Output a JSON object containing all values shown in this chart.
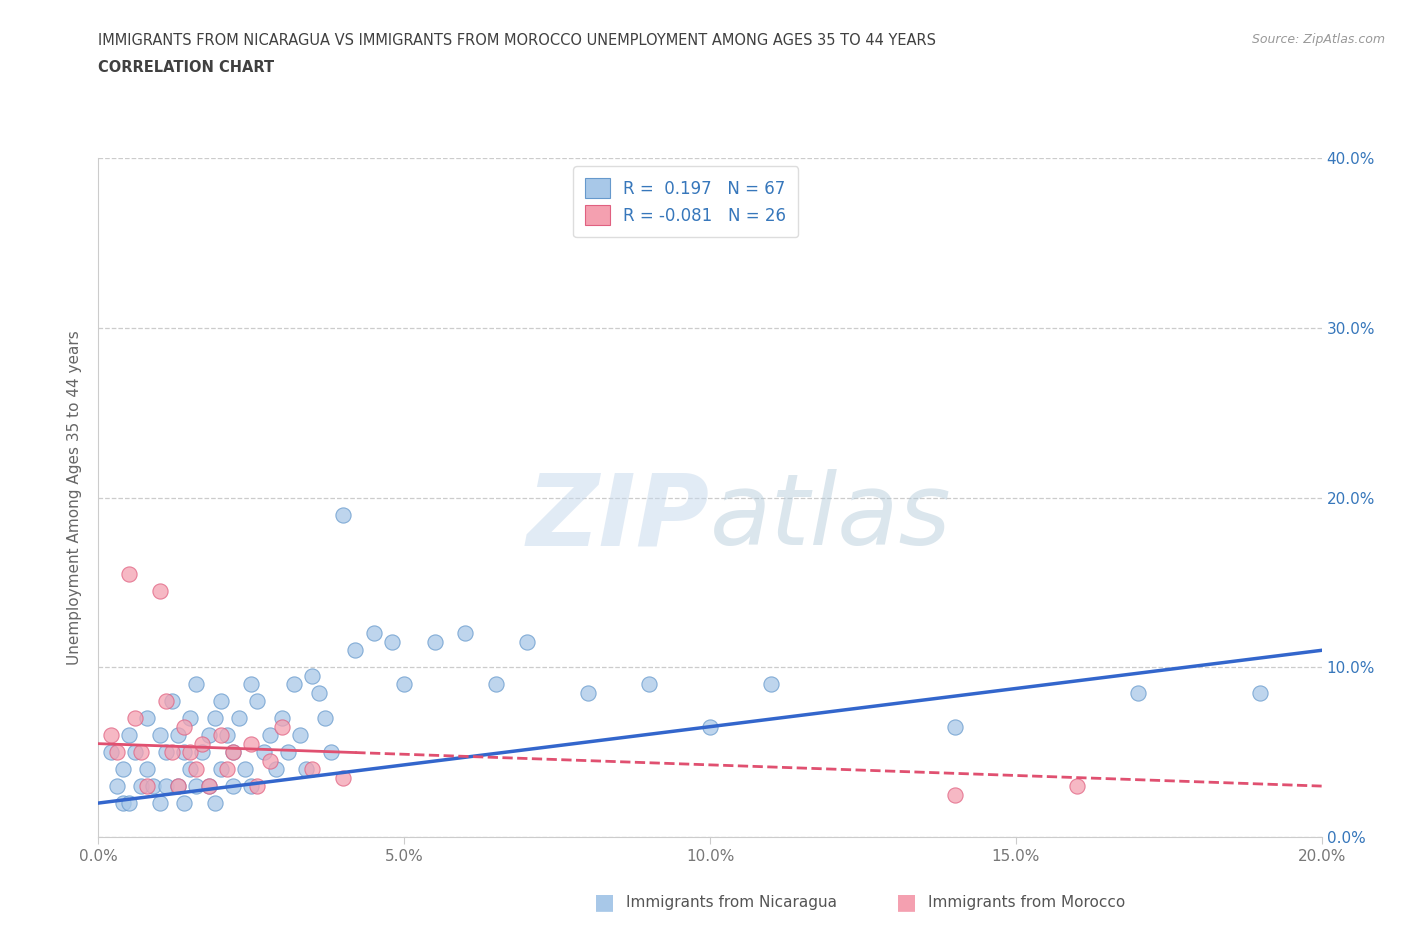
{
  "title_line1": "IMMIGRANTS FROM NICARAGUA VS IMMIGRANTS FROM MOROCCO UNEMPLOYMENT AMONG AGES 35 TO 44 YEARS",
  "title_line2": "CORRELATION CHART",
  "source": "Source: ZipAtlas.com",
  "ylabel": "Unemployment Among Ages 35 to 44 years",
  "xlim": [
    0.0,
    0.2
  ],
  "ylim": [
    0.0,
    0.4
  ],
  "xticks": [
    0.0,
    0.05,
    0.1,
    0.15,
    0.2
  ],
  "yticks": [
    0.0,
    0.1,
    0.2,
    0.3,
    0.4
  ],
  "nicaragua_color": "#a8c8e8",
  "morocco_color": "#f4a0b0",
  "nicaragua_edge": "#6699cc",
  "morocco_edge": "#e06080",
  "trend_nicaragua_color": "#3366cc",
  "trend_morocco_color": "#e05070",
  "R_nicaragua": 0.197,
  "N_nicaragua": 67,
  "R_morocco": -0.081,
  "N_morocco": 26,
  "nicaragua_x": [
    0.002,
    0.003,
    0.004,
    0.004,
    0.005,
    0.005,
    0.006,
    0.007,
    0.008,
    0.008,
    0.009,
    0.01,
    0.01,
    0.011,
    0.011,
    0.012,
    0.013,
    0.013,
    0.014,
    0.014,
    0.015,
    0.015,
    0.016,
    0.016,
    0.017,
    0.018,
    0.018,
    0.019,
    0.019,
    0.02,
    0.02,
    0.021,
    0.022,
    0.022,
    0.023,
    0.024,
    0.025,
    0.025,
    0.026,
    0.027,
    0.028,
    0.029,
    0.03,
    0.031,
    0.032,
    0.033,
    0.034,
    0.035,
    0.036,
    0.037,
    0.038,
    0.04,
    0.042,
    0.045,
    0.048,
    0.05,
    0.055,
    0.06,
    0.065,
    0.07,
    0.08,
    0.09,
    0.1,
    0.11,
    0.14,
    0.17,
    0.19
  ],
  "nicaragua_y": [
    0.05,
    0.03,
    0.04,
    0.02,
    0.06,
    0.02,
    0.05,
    0.03,
    0.07,
    0.04,
    0.03,
    0.06,
    0.02,
    0.05,
    0.03,
    0.08,
    0.06,
    0.03,
    0.05,
    0.02,
    0.07,
    0.04,
    0.09,
    0.03,
    0.05,
    0.06,
    0.03,
    0.07,
    0.02,
    0.08,
    0.04,
    0.06,
    0.05,
    0.03,
    0.07,
    0.04,
    0.09,
    0.03,
    0.08,
    0.05,
    0.06,
    0.04,
    0.07,
    0.05,
    0.09,
    0.06,
    0.04,
    0.095,
    0.085,
    0.07,
    0.05,
    0.19,
    0.11,
    0.12,
    0.115,
    0.09,
    0.115,
    0.12,
    0.09,
    0.115,
    0.085,
    0.09,
    0.065,
    0.09,
    0.065,
    0.085,
    0.085
  ],
  "morocco_x": [
    0.002,
    0.003,
    0.005,
    0.006,
    0.007,
    0.008,
    0.01,
    0.011,
    0.012,
    0.013,
    0.014,
    0.015,
    0.016,
    0.017,
    0.018,
    0.02,
    0.021,
    0.022,
    0.025,
    0.026,
    0.028,
    0.03,
    0.035,
    0.04,
    0.14,
    0.16
  ],
  "morocco_y": [
    0.06,
    0.05,
    0.155,
    0.07,
    0.05,
    0.03,
    0.145,
    0.08,
    0.05,
    0.03,
    0.065,
    0.05,
    0.04,
    0.055,
    0.03,
    0.06,
    0.04,
    0.05,
    0.055,
    0.03,
    0.045,
    0.065,
    0.04,
    0.035,
    0.025,
    0.03
  ],
  "watermark_zip": "ZIP",
  "watermark_atlas": "atlas",
  "background_color": "#ffffff",
  "grid_color": "#cccccc",
  "title_color": "#404040",
  "right_tick_color": "#3777bb",
  "bottom_label_color": "#555555"
}
